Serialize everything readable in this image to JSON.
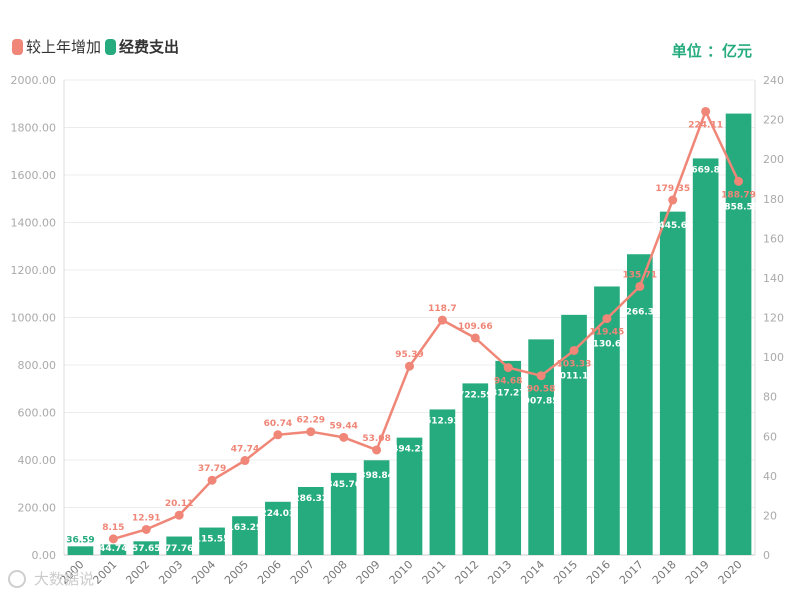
{
  "colors": {
    "bar": "#26ab7f",
    "line": "#ef8677",
    "grid": "#ececec",
    "axis_text": "#aaaaaa",
    "unit": "#26ab7f"
  },
  "legend": {
    "increase_label": "较上年增加",
    "spend_label": "经费支出"
  },
  "unit_label": "单位 ：亿元",
  "watermark": "大数据说",
  "chart_data": {
    "type": "bar",
    "categories": [
      "2000",
      "2001",
      "2002",
      "2003",
      "2004",
      "2005",
      "2006",
      "2007",
      "2008",
      "2009",
      "2010",
      "2011",
      "2012",
      "2013",
      "2014",
      "2015",
      "2016",
      "2017",
      "2018",
      "2019",
      "2020"
    ],
    "series": [
      {
        "name": "经费支出",
        "type": "bar",
        "axis": "left",
        "values": [
          36.59,
          44.74,
          57.65,
          77.76,
          115.55,
          163.29,
          224.03,
          286.32,
          345.76,
          398.84,
          494.23,
          612.93,
          722.59,
          817.27,
          907.85,
          1011.18,
          1130.63,
          1266.34,
          1445.69,
          1669.8,
          1858.59
        ],
        "labels": [
          "36.59",
          "44.74",
          "57.65",
          "77.76",
          "115.55",
          "163.29",
          "224.03",
          "286.32",
          "345.76",
          "398.84",
          "494.23",
          "612.93",
          "722.59",
          "817.27",
          "907.85",
          "1011.18",
          "1130.63",
          "1266.34",
          "1445.69",
          "1669.80",
          "1858.59"
        ]
      },
      {
        "name": "较上年增加",
        "type": "line",
        "axis": "right",
        "values": [
          null,
          8.15,
          12.91,
          20.11,
          37.79,
          47.74,
          60.74,
          62.29,
          59.44,
          53.08,
          95.39,
          118.7,
          109.66,
          94.68,
          90.58,
          103.33,
          119.45,
          135.71,
          179.35,
          224.11,
          188.79
        ],
        "labels": [
          "",
          "8.15",
          "12.91",
          "20.11",
          "37.79",
          "47.74",
          "60.74",
          "62.29",
          "59.44",
          "53.08",
          "95.39",
          "118.7",
          "109.66",
          "94.68",
          "90.58",
          "103.33",
          "119.45",
          "135.71",
          "179.35",
          "224.11",
          "188.79"
        ]
      }
    ],
    "y_left": {
      "lim": [
        0,
        2000
      ],
      "ticks": [
        0,
        200,
        400,
        600,
        800,
        1000,
        1200,
        1400,
        1600,
        1800,
        2000
      ],
      "tick_labels": [
        "0.00",
        "200.00",
        "400.00",
        "600.00",
        "800.00",
        "1000.00",
        "1200.00",
        "1400.00",
        "1600.00",
        "1800.00",
        "2000.00"
      ]
    },
    "y_right": {
      "lim": [
        0,
        240
      ],
      "ticks": [
        0,
        20,
        40,
        60,
        80,
        100,
        120,
        140,
        160,
        180,
        200,
        220,
        240
      ],
      "tick_labels": [
        "0",
        "20",
        "40",
        "60",
        "80",
        "100",
        "120",
        "140",
        "160",
        "180",
        "200",
        "220",
        "240"
      ]
    },
    "grid": true,
    "legend_position": "top-left"
  }
}
